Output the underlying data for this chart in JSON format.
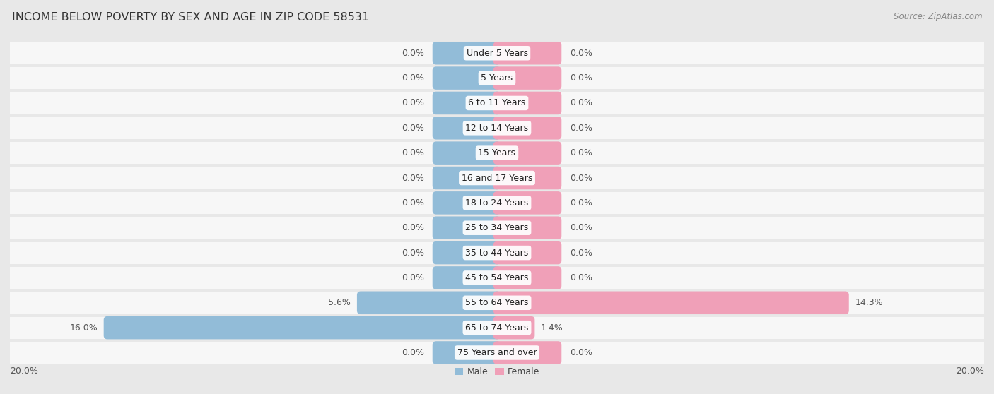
{
  "title": "INCOME BELOW POVERTY BY SEX AND AGE IN ZIP CODE 58531",
  "source": "Source: ZipAtlas.com",
  "categories": [
    "Under 5 Years",
    "5 Years",
    "6 to 11 Years",
    "12 to 14 Years",
    "15 Years",
    "16 and 17 Years",
    "18 to 24 Years",
    "25 to 34 Years",
    "35 to 44 Years",
    "45 to 54 Years",
    "55 to 64 Years",
    "65 to 74 Years",
    "75 Years and over"
  ],
  "male_values": [
    0.0,
    0.0,
    0.0,
    0.0,
    0.0,
    0.0,
    0.0,
    0.0,
    0.0,
    0.0,
    5.6,
    16.0,
    0.0
  ],
  "female_values": [
    0.0,
    0.0,
    0.0,
    0.0,
    0.0,
    0.0,
    0.0,
    0.0,
    0.0,
    0.0,
    14.3,
    1.4,
    0.0
  ],
  "male_color": "#92bcd8",
  "female_color": "#f0a0b8",
  "male_label": "Male",
  "female_label": "Female",
  "xlim": 20.0,
  "stub_size": 2.5,
  "background_color": "#e8e8e8",
  "row_color": "#f7f7f7",
  "sep_color": "#d5d5d5",
  "bar_height": 0.62,
  "title_fontsize": 11.5,
  "cat_fontsize": 9,
  "val_fontsize": 9,
  "tick_fontsize": 9,
  "source_fontsize": 8.5
}
